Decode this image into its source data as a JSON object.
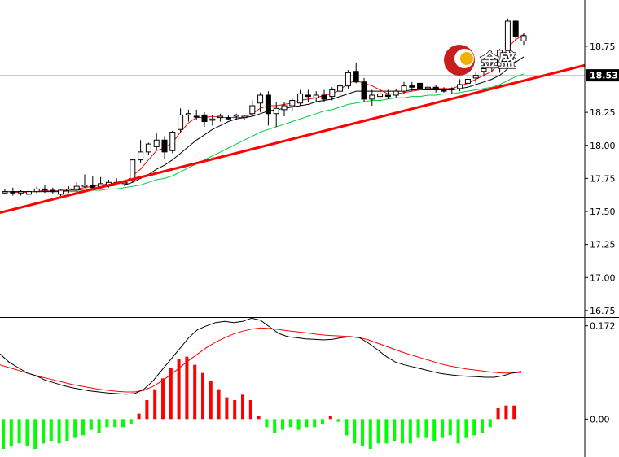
{
  "watermark": {
    "text": "金盛",
    "logo_color": "#c81e1e"
  },
  "colors": {
    "background": "#ffffff",
    "axis": "#000000",
    "bull_body": "#ffffff",
    "bear_body": "#000000",
    "ma_fast": "#ff0000",
    "ma_mid": "#000000",
    "ma_slow": "#00cc44",
    "trendline": "#ff0000",
    "macd_pos": "#ff0000",
    "macd_neg": "#00ff00",
    "macd_line": "#000000",
    "signal_line": "#ff0000",
    "price_tag_bg": "#000000",
    "current_price_line": "#c0c0c0"
  },
  "chart_data": [
    {
      "type": "candlestick",
      "current_price": 18.53,
      "current_price_label": "18.53",
      "ylim": [
        16.7,
        19.1
      ],
      "yticks": [
        {
          "value": 18.75,
          "label": "18.75"
        },
        {
          "value": 18.25,
          "label": "18.25"
        },
        {
          "value": 18.0,
          "label": "18.00"
        },
        {
          "value": 17.75,
          "label": "17.75"
        },
        {
          "value": 17.5,
          "label": "17.50"
        },
        {
          "value": 17.25,
          "label": "17.25"
        },
        {
          "value": 17.0,
          "label": "17.00"
        },
        {
          "value": 16.75,
          "label": "16.75"
        }
      ],
      "candles": [
        [
          17.64,
          17.67,
          17.63,
          17.65
        ],
        [
          17.65,
          17.68,
          17.62,
          17.64
        ],
        [
          17.64,
          17.66,
          17.62,
          17.65
        ],
        [
          17.63,
          17.67,
          17.6,
          17.65
        ],
        [
          17.65,
          17.69,
          17.63,
          17.67
        ],
        [
          17.67,
          17.7,
          17.64,
          17.66
        ],
        [
          17.66,
          17.68,
          17.63,
          17.65
        ],
        [
          17.63,
          17.67,
          17.6,
          17.66
        ],
        [
          17.66,
          17.69,
          17.64,
          17.67
        ],
        [
          17.67,
          17.72,
          17.65,
          17.69
        ],
        [
          17.69,
          17.78,
          17.68,
          17.7
        ],
        [
          17.7,
          17.77,
          17.67,
          17.68
        ],
        [
          17.68,
          17.76,
          17.67,
          17.71
        ],
        [
          17.7,
          17.74,
          17.68,
          17.72
        ],
        [
          17.72,
          17.75,
          17.7,
          17.71
        ],
        [
          17.71,
          17.73,
          17.69,
          17.72
        ],
        [
          17.73,
          17.9,
          17.72,
          17.89
        ],
        [
          17.89,
          18.04,
          17.87,
          17.95
        ],
        [
          17.95,
          18.02,
          17.93,
          18.01
        ],
        [
          17.99,
          18.09,
          17.96,
          18.04
        ],
        [
          18.04,
          18.07,
          17.9,
          17.95
        ],
        [
          17.96,
          18.11,
          17.94,
          18.1
        ],
        [
          18.12,
          18.28,
          18.1,
          18.23
        ],
        [
          18.23,
          18.27,
          18.18,
          18.24
        ],
        [
          18.22,
          18.27,
          18.19,
          18.22
        ],
        [
          18.23,
          18.25,
          18.14,
          18.18
        ],
        [
          18.19,
          18.23,
          18.15,
          18.2
        ],
        [
          18.21,
          18.24,
          18.18,
          18.22
        ],
        [
          18.21,
          18.23,
          18.19,
          18.2
        ],
        [
          18.22,
          18.24,
          18.19,
          18.23
        ],
        [
          18.21,
          18.23,
          18.19,
          18.22
        ],
        [
          18.24,
          18.34,
          18.22,
          18.3
        ],
        [
          18.32,
          18.4,
          18.25,
          18.38
        ],
        [
          18.38,
          18.41,
          18.15,
          18.24
        ],
        [
          18.24,
          18.33,
          18.14,
          18.28
        ],
        [
          18.27,
          18.33,
          18.22,
          18.3
        ],
        [
          18.3,
          18.36,
          18.26,
          18.34
        ],
        [
          18.32,
          18.42,
          18.3,
          18.39
        ],
        [
          18.38,
          18.42,
          18.33,
          18.37
        ],
        [
          18.36,
          18.41,
          18.33,
          18.38
        ],
        [
          18.38,
          18.42,
          18.33,
          18.35
        ],
        [
          18.37,
          18.44,
          18.34,
          18.42
        ],
        [
          18.41,
          18.47,
          18.38,
          18.45
        ],
        [
          18.45,
          18.57,
          18.43,
          18.55
        ],
        [
          18.56,
          18.62,
          18.47,
          18.48
        ],
        [
          18.48,
          18.51,
          18.33,
          18.35
        ],
        [
          18.35,
          18.42,
          18.3,
          18.38
        ],
        [
          18.37,
          18.42,
          18.32,
          18.39
        ],
        [
          18.38,
          18.42,
          18.35,
          18.37
        ],
        [
          18.38,
          18.43,
          18.36,
          18.41
        ],
        [
          18.41,
          18.48,
          18.39,
          18.45
        ],
        [
          18.45,
          18.48,
          18.41,
          18.44
        ],
        [
          18.47,
          18.46,
          18.42,
          18.43
        ],
        [
          18.43,
          18.47,
          18.4,
          18.44
        ],
        [
          18.44,
          18.46,
          18.4,
          18.42
        ],
        [
          18.42,
          18.44,
          18.4,
          18.41
        ],
        [
          18.42,
          18.44,
          18.39,
          18.43
        ],
        [
          18.43,
          18.5,
          18.41,
          18.46
        ],
        [
          18.47,
          18.53,
          18.44,
          18.5
        ],
        [
          18.51,
          18.56,
          18.47,
          18.53
        ],
        [
          18.56,
          18.63,
          18.52,
          18.58
        ],
        [
          18.59,
          18.65,
          18.56,
          18.6
        ],
        [
          18.6,
          18.73,
          18.55,
          18.72
        ],
        [
          18.72,
          18.96,
          18.6,
          18.94
        ],
        [
          18.94,
          18.95,
          18.8,
          18.82
        ],
        [
          18.79,
          18.85,
          18.76,
          18.83
        ]
      ],
      "ma_fast": [
        17.65,
        17.65,
        17.64,
        17.65,
        17.65,
        17.66,
        17.65,
        17.66,
        17.66,
        17.67,
        17.68,
        17.69,
        17.7,
        17.71,
        17.71,
        17.72,
        17.77,
        17.82,
        17.89,
        17.96,
        17.98,
        18.02,
        18.1,
        18.17,
        18.21,
        18.21,
        18.22,
        18.21,
        18.21,
        18.21,
        18.21,
        18.24,
        18.28,
        18.3,
        18.3,
        18.31,
        18.32,
        18.34,
        18.35,
        18.36,
        18.38,
        18.39,
        18.42,
        18.47,
        18.49,
        18.47,
        18.45,
        18.42,
        18.39,
        18.39,
        18.4,
        18.41,
        18.42,
        18.43,
        18.43,
        18.43,
        18.43,
        18.45,
        18.47,
        18.5,
        18.53,
        18.56,
        18.63,
        18.74,
        18.8,
        18.84
      ],
      "ma_mid": [
        17.65,
        17.65,
        17.65,
        17.65,
        17.65,
        17.65,
        17.65,
        17.65,
        17.66,
        17.66,
        17.67,
        17.67,
        17.68,
        17.69,
        17.7,
        17.7,
        17.72,
        17.75,
        17.78,
        17.82,
        17.85,
        17.89,
        17.94,
        17.99,
        18.04,
        18.08,
        18.12,
        18.15,
        18.18,
        18.2,
        18.21,
        18.22,
        18.24,
        18.26,
        18.27,
        18.28,
        18.29,
        18.3,
        18.31,
        18.33,
        18.34,
        18.35,
        18.37,
        18.39,
        18.41,
        18.41,
        18.41,
        18.41,
        18.41,
        18.41,
        18.41,
        18.42,
        18.42,
        18.42,
        18.42,
        18.42,
        18.42,
        18.43,
        18.44,
        18.46,
        18.48,
        18.5,
        18.53,
        18.58,
        18.63,
        18.67
      ],
      "ma_slow": [
        17.65,
        17.65,
        17.65,
        17.65,
        17.65,
        17.65,
        17.65,
        17.65,
        17.65,
        17.65,
        17.66,
        17.66,
        17.66,
        17.67,
        17.67,
        17.68,
        17.69,
        17.7,
        17.72,
        17.74,
        17.75,
        17.77,
        17.8,
        17.83,
        17.86,
        17.89,
        17.92,
        17.95,
        17.98,
        18.01,
        18.04,
        18.07,
        18.1,
        18.12,
        18.14,
        18.16,
        18.18,
        18.2,
        18.22,
        18.24,
        18.26,
        18.27,
        18.29,
        18.31,
        18.32,
        18.33,
        18.34,
        18.34,
        18.35,
        18.36,
        18.36,
        18.37,
        18.37,
        18.38,
        18.38,
        18.39,
        18.39,
        18.4,
        18.41,
        18.42,
        18.43,
        18.44,
        18.46,
        18.49,
        18.52,
        18.54
      ],
      "trendline": {
        "from": [
          0,
          17.5
        ],
        "to": [
          67,
          18.52
        ]
      }
    },
    {
      "type": "bar",
      "title": "0.172",
      "ylim": [
        -0.07,
        0.185
      ],
      "yticks": [
        {
          "value": 0.172,
          "label": "0.172"
        },
        {
          "value": 0.0,
          "label": "0.00"
        }
      ],
      "histogram": [
        -0.055,
        -0.05,
        -0.045,
        -0.05,
        -0.055,
        -0.045,
        -0.04,
        -0.045,
        -0.04,
        -0.035,
        -0.03,
        -0.02,
        -0.025,
        -0.015,
        -0.015,
        -0.015,
        -0.01,
        0.01,
        0.035,
        0.055,
        0.075,
        0.095,
        0.11,
        0.115,
        0.1,
        0.085,
        0.07,
        0.055,
        0.04,
        0.035,
        0.045,
        0.035,
        0.005,
        -0.015,
        -0.025,
        -0.02,
        -0.015,
        -0.02,
        -0.015,
        -0.015,
        -0.01,
        0.005,
        -0.005,
        -0.03,
        -0.045,
        -0.05,
        -0.055,
        -0.045,
        -0.045,
        -0.04,
        -0.045,
        -0.045,
        -0.035,
        -0.035,
        -0.04,
        -0.035,
        -0.03,
        -0.045,
        -0.035,
        -0.03,
        -0.025,
        -0.015,
        0.02,
        0.025,
        0.025
      ],
      "macd_line": [
        0.12,
        0.105,
        0.095,
        0.085,
        0.08,
        0.072,
        0.067,
        0.062,
        0.058,
        0.055,
        0.052,
        0.05,
        0.048,
        0.047,
        0.046,
        0.047,
        0.055,
        0.07,
        0.09,
        0.11,
        0.13,
        0.15,
        0.165,
        0.172,
        0.178,
        0.18,
        0.178,
        0.18,
        0.186,
        0.182,
        0.17,
        0.158,
        0.152,
        0.15,
        0.148,
        0.147,
        0.146,
        0.147,
        0.15,
        0.152,
        0.15,
        0.14,
        0.128,
        0.115,
        0.105,
        0.1,
        0.096,
        0.092,
        0.088,
        0.084,
        0.082,
        0.08,
        0.079,
        0.078,
        0.077,
        0.077,
        0.08,
        0.085,
        0.088
      ],
      "signal_line": [
        0.1,
        0.095,
        0.09,
        0.085,
        0.08,
        0.076,
        0.072,
        0.068,
        0.064,
        0.061,
        0.058,
        0.055,
        0.053,
        0.051,
        0.05,
        0.05,
        0.053,
        0.06,
        0.07,
        0.082,
        0.095,
        0.108,
        0.12,
        0.132,
        0.142,
        0.15,
        0.157,
        0.162,
        0.166,
        0.168,
        0.167,
        0.165,
        0.163,
        0.161,
        0.159,
        0.157,
        0.155,
        0.154,
        0.153,
        0.152,
        0.15,
        0.146,
        0.14,
        0.134,
        0.128,
        0.122,
        0.117,
        0.112,
        0.107,
        0.102,
        0.098,
        0.095,
        0.092,
        0.09,
        0.088,
        0.086,
        0.085,
        0.085,
        0.086
      ]
    }
  ]
}
